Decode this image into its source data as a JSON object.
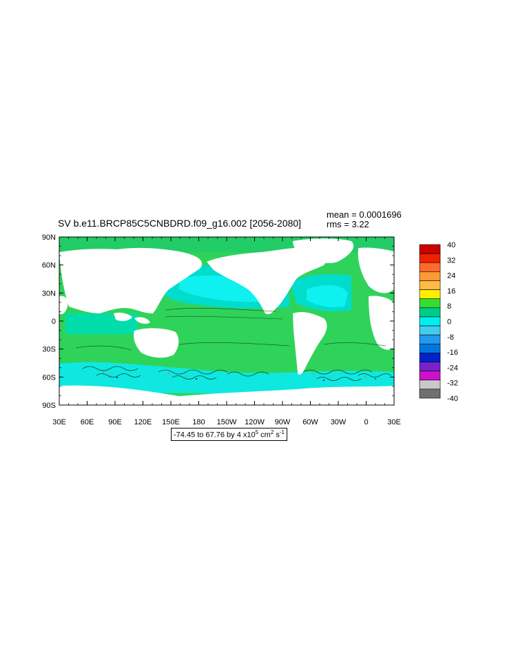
{
  "header": {
    "title": "SV b.e11.BRCP85C5CNBDRD.f09_g16.002 [2056-2080]",
    "mean": "mean = 0.0001696",
    "rms": "rms = 3.22"
  },
  "footer": {
    "range_prefix": "-74.45 to 67.76 by 4 x10",
    "range_exp": "5",
    "range_unit": " cm",
    "unit_exp1": "2",
    "unit_s": " s",
    "unit_exp2": "-1"
  },
  "map_data": {
    "projection": "cylindrical-equidistant",
    "lon_range": [
      30,
      390
    ],
    "lat_range": [
      -90,
      90
    ],
    "lat_labels": [
      "90N",
      "60N",
      "30N",
      "0",
      "30S",
      "60S",
      "90S"
    ],
    "lon_labels": [
      "30E",
      "60E",
      "90E",
      "120E",
      "150E",
      "180",
      "150W",
      "120W",
      "90W",
      "60W",
      "30W",
      "0",
      "30E"
    ],
    "variable": "SV",
    "range": {
      "min": -74.45,
      "max": 67.76,
      "interval": 4
    }
  },
  "colorbar": {
    "labels": [
      "40",
      "32",
      "24",
      "16",
      "8",
      "0",
      "-8",
      "-16",
      "-24",
      "-32",
      "-40"
    ],
    "colors": [
      "#cc0000",
      "#ee2200",
      "#ff6a2a",
      "#ff9933",
      "#ffbb44",
      "#ffee00",
      "#33dd33",
      "#00cc88",
      "#00eeee",
      "#44ccee",
      "#2299ee",
      "#0077dd",
      "#0022cc",
      "#7722cc",
      "#cc11cc",
      "#c8c8c8",
      "#707070"
    ]
  }
}
